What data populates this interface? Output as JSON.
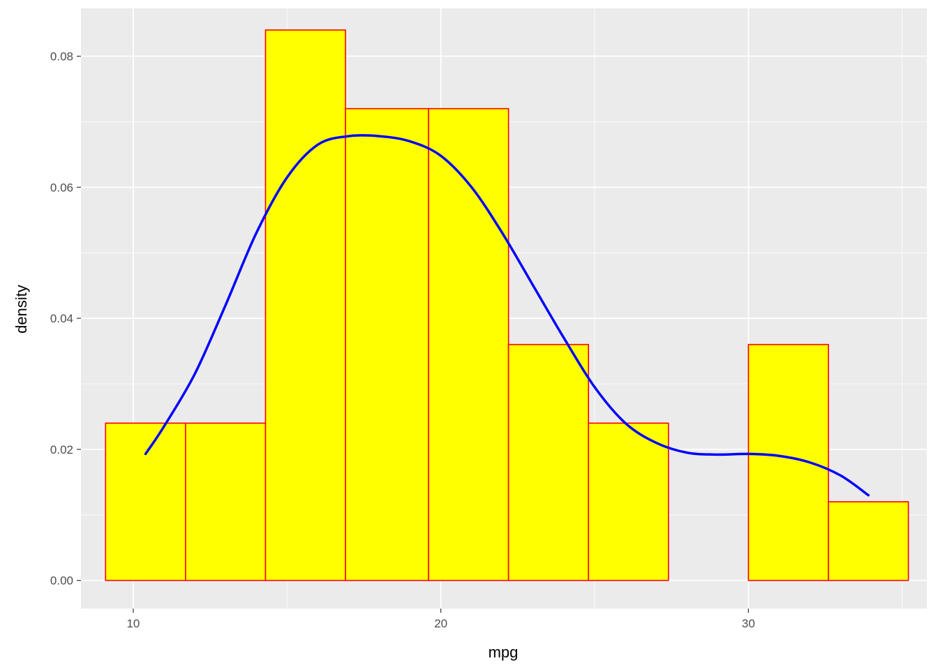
{
  "chart_data": {
    "type": "histogram",
    "xlabel": "mpg",
    "ylabel": "density",
    "xlim": [
      8.3,
      35.8
    ],
    "ylim": [
      -0.0043,
      0.0873
    ],
    "x_ticks": [
      10,
      20,
      30
    ],
    "y_ticks": [
      0.0,
      0.02,
      0.04,
      0.06,
      0.08
    ],
    "y_tick_labels": [
      "0.00",
      "0.02",
      "0.04",
      "0.06",
      "0.08"
    ],
    "bins": [
      {
        "x0": 9.1,
        "x1": 11.7,
        "density": 0.024
      },
      {
        "x0": 11.7,
        "x1": 14.3,
        "density": 0.024
      },
      {
        "x0": 14.3,
        "x1": 16.9,
        "density": 0.084
      },
      {
        "x0": 16.9,
        "x1": 19.6,
        "density": 0.072
      },
      {
        "x0": 19.6,
        "x1": 22.2,
        "density": 0.072
      },
      {
        "x0": 22.2,
        "x1": 24.8,
        "density": 0.036
      },
      {
        "x0": 24.8,
        "x1": 27.4,
        "density": 0.024
      },
      {
        "x0": 27.4,
        "x1": 30.0,
        "density": 0.0
      },
      {
        "x0": 30.0,
        "x1": 32.6,
        "density": 0.036
      },
      {
        "x0": 32.6,
        "x1": 35.2,
        "density": 0.012
      }
    ],
    "density_curve": {
      "x": [
        10.4,
        11.0,
        12.0,
        13.0,
        14.0,
        15.0,
        16.0,
        17.0,
        18.0,
        19.0,
        20.0,
        21.0,
        22.0,
        23.0,
        24.0,
        25.0,
        26.0,
        27.0,
        28.0,
        29.0,
        30.0,
        31.0,
        32.0,
        33.0,
        33.9
      ],
      "y": [
        0.0193,
        0.0235,
        0.0315,
        0.042,
        0.053,
        0.0615,
        0.0665,
        0.0678,
        0.0678,
        0.067,
        0.0648,
        0.06,
        0.053,
        0.045,
        0.037,
        0.0295,
        0.024,
        0.021,
        0.0195,
        0.0192,
        0.0193,
        0.019,
        0.018,
        0.016,
        0.013
      ]
    },
    "colors": {
      "panel_background": "#ebebeb",
      "grid": "#ffffff",
      "bar_fill": "#ffff00",
      "bar_outline": "#ff0000",
      "curve": "#0000ff"
    },
    "grid": true,
    "legend": "none"
  }
}
